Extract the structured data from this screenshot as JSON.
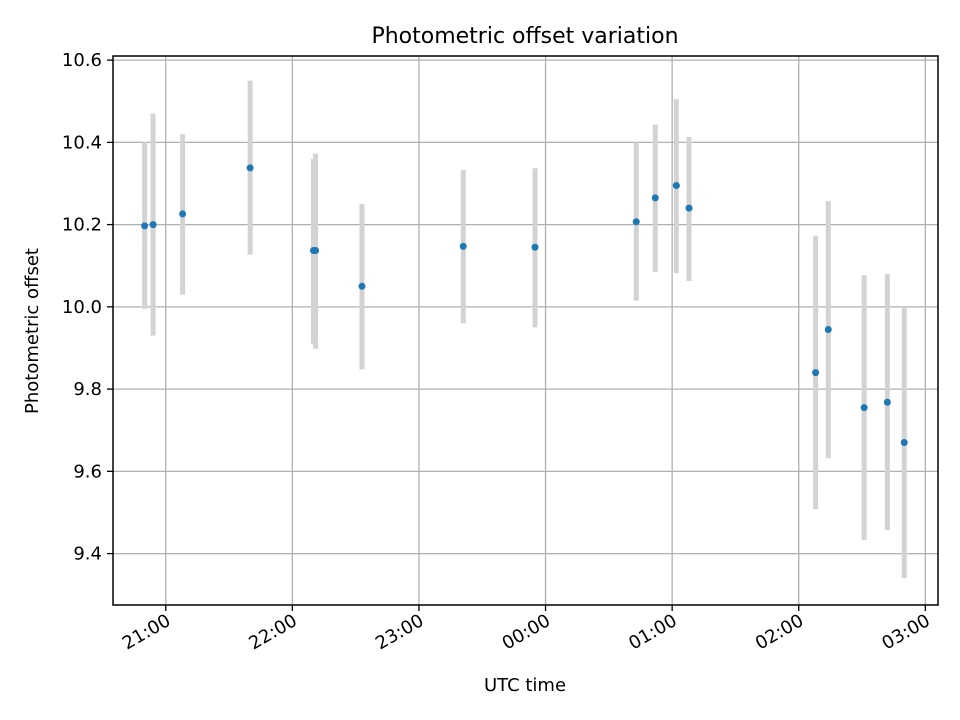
{
  "chart_data": {
    "type": "scatter",
    "title": "Photometric offset variation",
    "xlabel": "UTC time",
    "ylabel": "Photometric offset",
    "ylim": [
      9.275,
      10.61
    ],
    "xlim": [
      "20:35",
      "03:06"
    ],
    "grid": true,
    "x_ticks": [
      "21:00",
      "22:00",
      "23:00",
      "00:00",
      "01:00",
      "02:00",
      "03:00"
    ],
    "y_ticks": [
      9.4,
      9.6,
      9.8,
      10.0,
      10.2,
      10.4,
      10.6
    ],
    "errorbar_color": "#d3d3d3",
    "point_color": "#1f77b4",
    "points": [
      {
        "x": "20:50",
        "y": 10.197,
        "low": 9.995,
        "high": 10.4
      },
      {
        "x": "20:54",
        "y": 10.2,
        "low": 9.93,
        "high": 10.47
      },
      {
        "x": "21:08",
        "y": 10.226,
        "low": 10.03,
        "high": 10.42
      },
      {
        "x": "21:40",
        "y": 10.338,
        "low": 10.127,
        "high": 10.55
      },
      {
        "x": "22:10",
        "y": 10.137,
        "low": 9.91,
        "high": 10.36
      },
      {
        "x": "22:11",
        "y": 10.137,
        "low": 9.898,
        "high": 10.373
      },
      {
        "x": "22:33",
        "y": 10.05,
        "low": 9.848,
        "high": 10.25
      },
      {
        "x": "23:21",
        "y": 10.147,
        "low": 9.96,
        "high": 10.333
      },
      {
        "x": "23:55",
        "y": 10.145,
        "low": 9.95,
        "high": 10.337
      },
      {
        "x": "00:43",
        "y": 10.207,
        "low": 10.015,
        "high": 10.4
      },
      {
        "x": "00:52",
        "y": 10.265,
        "low": 10.085,
        "high": 10.443
      },
      {
        "x": "01:02",
        "y": 10.295,
        "low": 10.082,
        "high": 10.505
      },
      {
        "x": "01:08",
        "y": 10.24,
        "low": 10.063,
        "high": 10.413
      },
      {
        "x": "02:08",
        "y": 9.84,
        "low": 9.508,
        "high": 10.173
      },
      {
        "x": "02:14",
        "y": 9.945,
        "low": 9.632,
        "high": 10.257
      },
      {
        "x": "02:31",
        "y": 9.755,
        "low": 9.433,
        "high": 10.077
      },
      {
        "x": "02:42",
        "y": 9.768,
        "low": 9.457,
        "high": 10.08
      },
      {
        "x": "02:50",
        "y": 9.67,
        "low": 9.34,
        "high": 10.0
      }
    ]
  }
}
